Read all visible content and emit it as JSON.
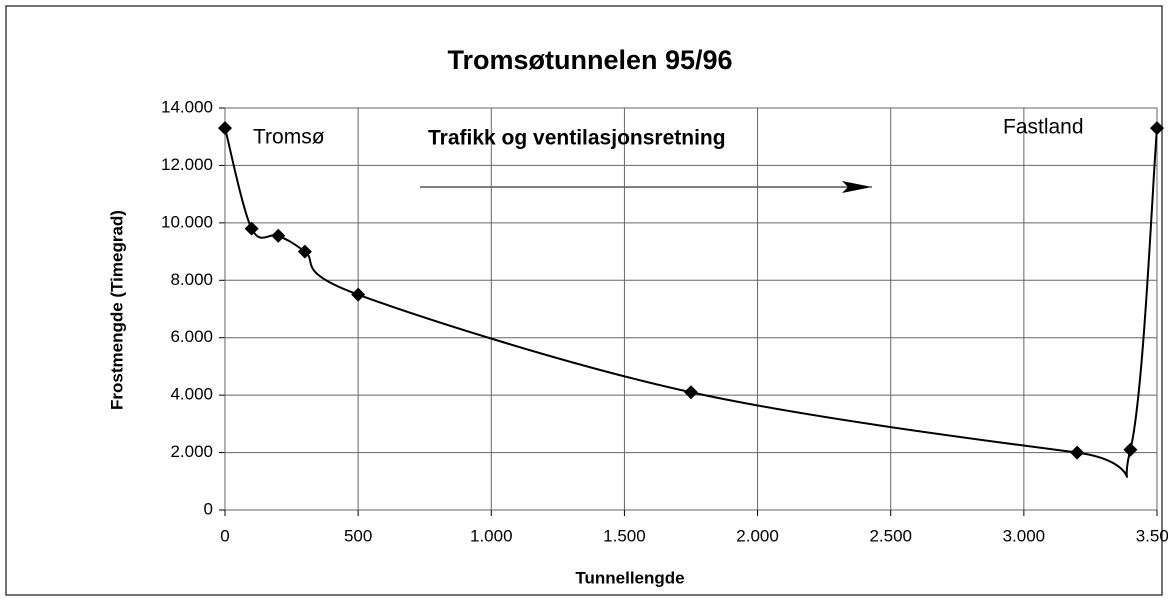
{
  "chart_data": {
    "type": "line",
    "title": "Tromsøtunnelen 95/96",
    "x_label": "Tunnellengde",
    "y_label": "Frostmengde (Timegrad)",
    "annotations": [
      "Tromsø",
      "Trafikk og ventilasjonsretning",
      "Fastland"
    ],
    "x": [
      0,
      100,
      200,
      300,
      500,
      1750,
      3200,
      3400,
      3500
    ],
    "series": [
      {
        "color": "#000000",
        "values": [
          13300,
          9800,
          9550,
          9000,
          7500,
          4100,
          2000,
          2100,
          13300
        ]
      }
    ],
    "xlim": [
      0,
      3500
    ],
    "xticks": [
      0,
      500,
      {
        "value": 1000,
        "label": "1.000"
      },
      {
        "value": 1500,
        "label": "1.500"
      },
      {
        "value": 2000,
        "label": "2.000"
      },
      {
        "value": 2500,
        "label": "2.500"
      },
      {
        "value": 3000,
        "label": "3.000"
      },
      {
        "value": 3500,
        "label": "3.500"
      }
    ],
    "ylim": [
      0,
      14000
    ],
    "yticks": [
      0,
      {
        "value": 2000,
        "label": "2.000"
      },
      {
        "value": 4000,
        "label": "4.000"
      },
      {
        "value": 6000,
        "label": "6.000"
      },
      {
        "value": 8000,
        "label": "8.000"
      },
      {
        "value": 10000,
        "label": "10.000"
      },
      {
        "value": 12000,
        "label": "12.000"
      },
      {
        "value": 14000,
        "label": "14.000"
      }
    ],
    "grid": true
  }
}
